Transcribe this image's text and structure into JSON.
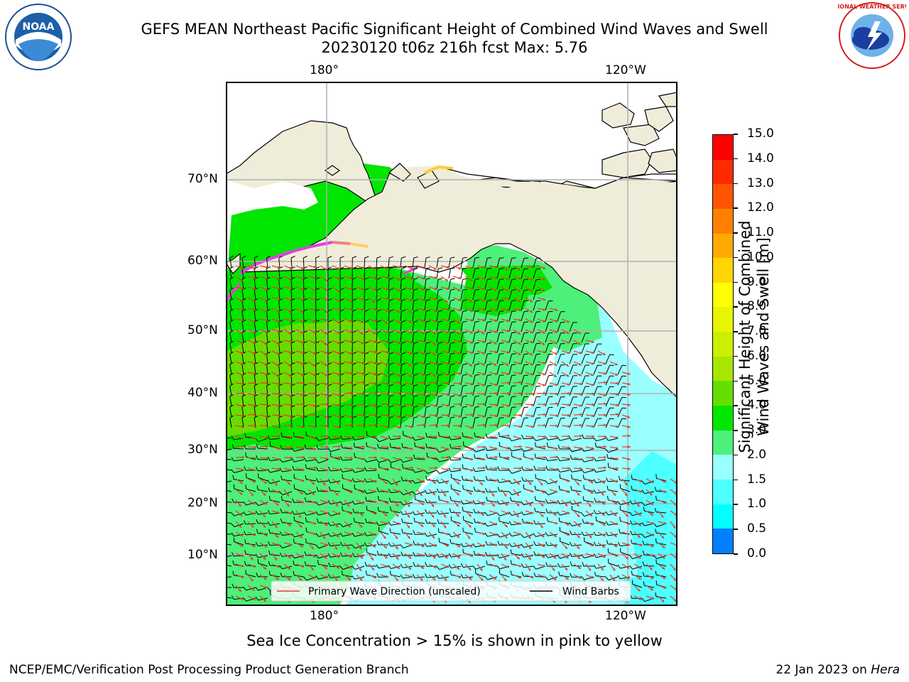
{
  "header": {
    "title_line1": "GEFS MEAN Northeast Pacific Significant Height of Combined Wind Waves and Swell",
    "title_line2": "20230120 t06z 216h fcst   Max: 5.76"
  },
  "map": {
    "lon_labels_top": [
      "180°",
      "120°W"
    ],
    "lon_labels_bottom": [
      "180°",
      "120°W"
    ],
    "lat_labels": [
      "70°N",
      "60°N",
      "50°N",
      "40°N",
      "30°N",
      "20°N",
      "10°N"
    ],
    "legend": {
      "wave_label": "Primary Wave Direction (unscaled)",
      "wind_label": "Wind Barbs",
      "wave_color": "#e83a2a",
      "wind_color": "#000000"
    },
    "colors": {
      "land": "#efedd9",
      "grid": "#b0b0b0"
    }
  },
  "colorbar": {
    "label_line1": "Significant Height of Combined",
    "label_line2": "Wind Waves and Swell [m]",
    "ticks": [
      "15.0",
      "14.0",
      "13.0",
      "12.0",
      "11.0",
      "10.0",
      "9.0",
      "8.0",
      "7.0",
      "6.0",
      "5.0",
      "4.0",
      "3.0",
      "2.0",
      "1.5",
      "1.0",
      "0.5",
      "0.0"
    ],
    "colors": [
      "#ff0000",
      "#ff2a00",
      "#ff5500",
      "#ff8000",
      "#ffaa00",
      "#ffd500",
      "#ffff00",
      "#e8f500",
      "#ccee00",
      "#a8e600",
      "#66dd00",
      "#00e600",
      "#4cf07a",
      "#99ffff",
      "#4dffff",
      "#00ffff",
      "#0080ff",
      "#0000ff"
    ]
  },
  "notes": {
    "sea_ice": "Sea Ice Concentration > 15% is shown in pink to yellow"
  },
  "footer": {
    "left": "NCEP/EMC/Verification Post Processing Product Generation Branch",
    "right_date": "22 Jan 2023 on ",
    "right_machine": "Hera"
  },
  "logos": {
    "noaa_text": "NOAA",
    "nws_text": "NATIONAL WEATHER SERVICE"
  }
}
